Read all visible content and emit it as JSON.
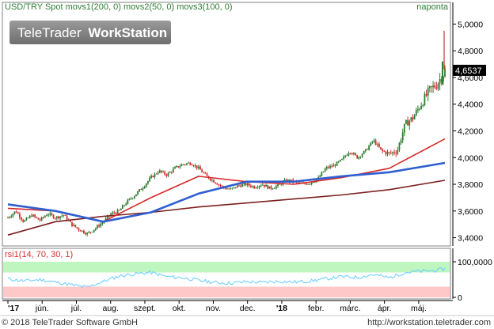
{
  "header": {
    "main_title": "USD/TRY Spot movs1(200, 0) movs2(50, 0) movs3(100, 0)",
    "period": "naponta",
    "watermark_brand": "TeleTrader",
    "watermark_product": "WorkStation"
  },
  "footer": {
    "copyright": "© 2018 TeleTrader Software GmbH",
    "url": "http://workstation.teletrader.com"
  },
  "colors": {
    "up_candle": "#2e7d32",
    "down_candle": "#d32f2f",
    "movs1": "#7b1f1f",
    "movs2": "#d62828",
    "movs3": "#2f5fd0",
    "rsi_line": "#66ccff",
    "rsi_upper_band": "#bff5bf",
    "rsi_lower_band": "#ffc8c8",
    "last_price_box": "#000000"
  },
  "chart_data": [
    {
      "type": "candlestick",
      "title": "USD/TRY Spot movs1(200, 0) movs2(50, 0) movs3(100, 0)",
      "ylim": [
        3.35,
        5.05
      ],
      "yticks": [
        "5,0000",
        "4,8000",
        "4,6000",
        "4,4000",
        "4,2000",
        "4,0000",
        "3,8000",
        "3,6000",
        "3,4000"
      ],
      "ytick_values": [
        5.0,
        4.8,
        4.6,
        4.4,
        4.2,
        4.0,
        3.8,
        3.6,
        3.4
      ],
      "last_price": "4,6537",
      "last_price_value": 4.6537,
      "x_labels": [
        "'17",
        "jún.",
        "júl.",
        "aug.",
        "szept.",
        "okt.",
        "nov.",
        "dec.",
        "'18",
        "febr.",
        "márc.",
        "ápr.",
        "máj."
      ],
      "price_path": [
        [
          0.0,
          3.55
        ],
        [
          0.05,
          3.6
        ],
        [
          0.1,
          3.52
        ],
        [
          0.15,
          3.57
        ],
        [
          0.2,
          3.53
        ],
        [
          0.25,
          3.58
        ],
        [
          0.3,
          3.55
        ],
        [
          0.35,
          3.57
        ],
        [
          0.4,
          3.5
        ],
        [
          0.45,
          3.46
        ],
        [
          0.5,
          3.43
        ],
        [
          0.55,
          3.47
        ],
        [
          0.6,
          3.52
        ],
        [
          0.65,
          3.58
        ],
        [
          0.7,
          3.6
        ],
        [
          0.75,
          3.67
        ],
        [
          0.8,
          3.72
        ],
        [
          0.85,
          3.78
        ],
        [
          0.9,
          3.85
        ],
        [
          0.95,
          3.9
        ],
        [
          1.0,
          3.87
        ],
        [
          1.05,
          3.92
        ],
        [
          1.1,
          3.95
        ],
        [
          1.15,
          3.96
        ],
        [
          1.2,
          3.92
        ],
        [
          1.25,
          3.86
        ],
        [
          1.3,
          3.82
        ],
        [
          1.35,
          3.78
        ],
        [
          1.4,
          3.76
        ],
        [
          1.45,
          3.79
        ],
        [
          1.5,
          3.8
        ],
        [
          1.55,
          3.78
        ],
        [
          1.6,
          3.8
        ],
        [
          1.65,
          3.77
        ],
        [
          1.7,
          3.79
        ],
        [
          1.75,
          3.83
        ],
        [
          1.8,
          3.82
        ],
        [
          1.85,
          3.8
        ],
        [
          1.9,
          3.81
        ],
        [
          1.95,
          3.84
        ],
        [
          2.0,
          3.92
        ],
        [
          2.05,
          3.94
        ],
        [
          2.1,
          3.98
        ],
        [
          2.15,
          4.05
        ],
        [
          2.2,
          4.0
        ],
        [
          2.25,
          4.05
        ],
        [
          2.3,
          4.13
        ],
        [
          2.35,
          4.05
        ],
        [
          2.4,
          4.03
        ],
        [
          2.45,
          4.05
        ],
        [
          2.5,
          4.25
        ],
        [
          2.55,
          4.3
        ],
        [
          2.6,
          4.4
        ],
        [
          2.65,
          4.5
        ],
        [
          2.7,
          4.55
        ],
        [
          2.75,
          4.65
        ]
      ],
      "series": [
        {
          "name": "movs1(200, 0)",
          "points": [
            [
              0.0,
              3.42
            ],
            [
              0.3,
              3.52
            ],
            [
              0.6,
              3.56
            ],
            [
              0.9,
              3.59
            ],
            [
              1.2,
              3.63
            ],
            [
              1.5,
              3.66
            ],
            [
              1.8,
              3.69
            ],
            [
              2.1,
              3.72
            ],
            [
              2.4,
              3.76
            ],
            [
              2.75,
              3.83
            ]
          ]
        },
        {
          "name": "movs2(50, 0)",
          "points": [
            [
              0.0,
              3.62
            ],
            [
              0.3,
              3.6
            ],
            [
              0.6,
              3.52
            ],
            [
              0.9,
              3.7
            ],
            [
              1.2,
              3.86
            ],
            [
              1.5,
              3.82
            ],
            [
              1.8,
              3.8
            ],
            [
              2.1,
              3.85
            ],
            [
              2.4,
              3.92
            ],
            [
              2.75,
              4.14
            ]
          ]
        },
        {
          "name": "movs3(100, 0)",
          "points": [
            [
              0.0,
              3.65
            ],
            [
              0.3,
              3.6
            ],
            [
              0.6,
              3.52
            ],
            [
              0.9,
              3.59
            ],
            [
              1.2,
              3.73
            ],
            [
              1.5,
              3.82
            ],
            [
              1.8,
              3.82
            ],
            [
              2.1,
              3.86
            ],
            [
              2.4,
              3.89
            ],
            [
              2.75,
              3.96
            ]
          ]
        }
      ],
      "grid": false,
      "ylabel_position": "right"
    },
    {
      "type": "line",
      "title": "rsi1(14, 70, 30, 1)",
      "ylim": [
        0,
        100
      ],
      "yticks": [
        "100,0000",
        "0"
      ],
      "upper_band": 70,
      "lower_band": 30,
      "rsi_path": [
        [
          0.0,
          52
        ],
        [
          0.1,
          46
        ],
        [
          0.2,
          50
        ],
        [
          0.3,
          43
        ],
        [
          0.4,
          35
        ],
        [
          0.5,
          28
        ],
        [
          0.6,
          45
        ],
        [
          0.7,
          60
        ],
        [
          0.8,
          66
        ],
        [
          0.9,
          70
        ],
        [
          1.0,
          58
        ],
        [
          1.1,
          55
        ],
        [
          1.2,
          48
        ],
        [
          1.3,
          42
        ],
        [
          1.4,
          40
        ],
        [
          1.5,
          44
        ],
        [
          1.6,
          42
        ],
        [
          1.7,
          45
        ],
        [
          1.8,
          43
        ],
        [
          1.9,
          46
        ],
        [
          2.0,
          52
        ],
        [
          2.1,
          58
        ],
        [
          2.2,
          56
        ],
        [
          2.3,
          64
        ],
        [
          2.4,
          55
        ],
        [
          2.5,
          70
        ],
        [
          2.6,
          73
        ],
        [
          2.7,
          76
        ],
        [
          2.75,
          80
        ]
      ]
    }
  ]
}
